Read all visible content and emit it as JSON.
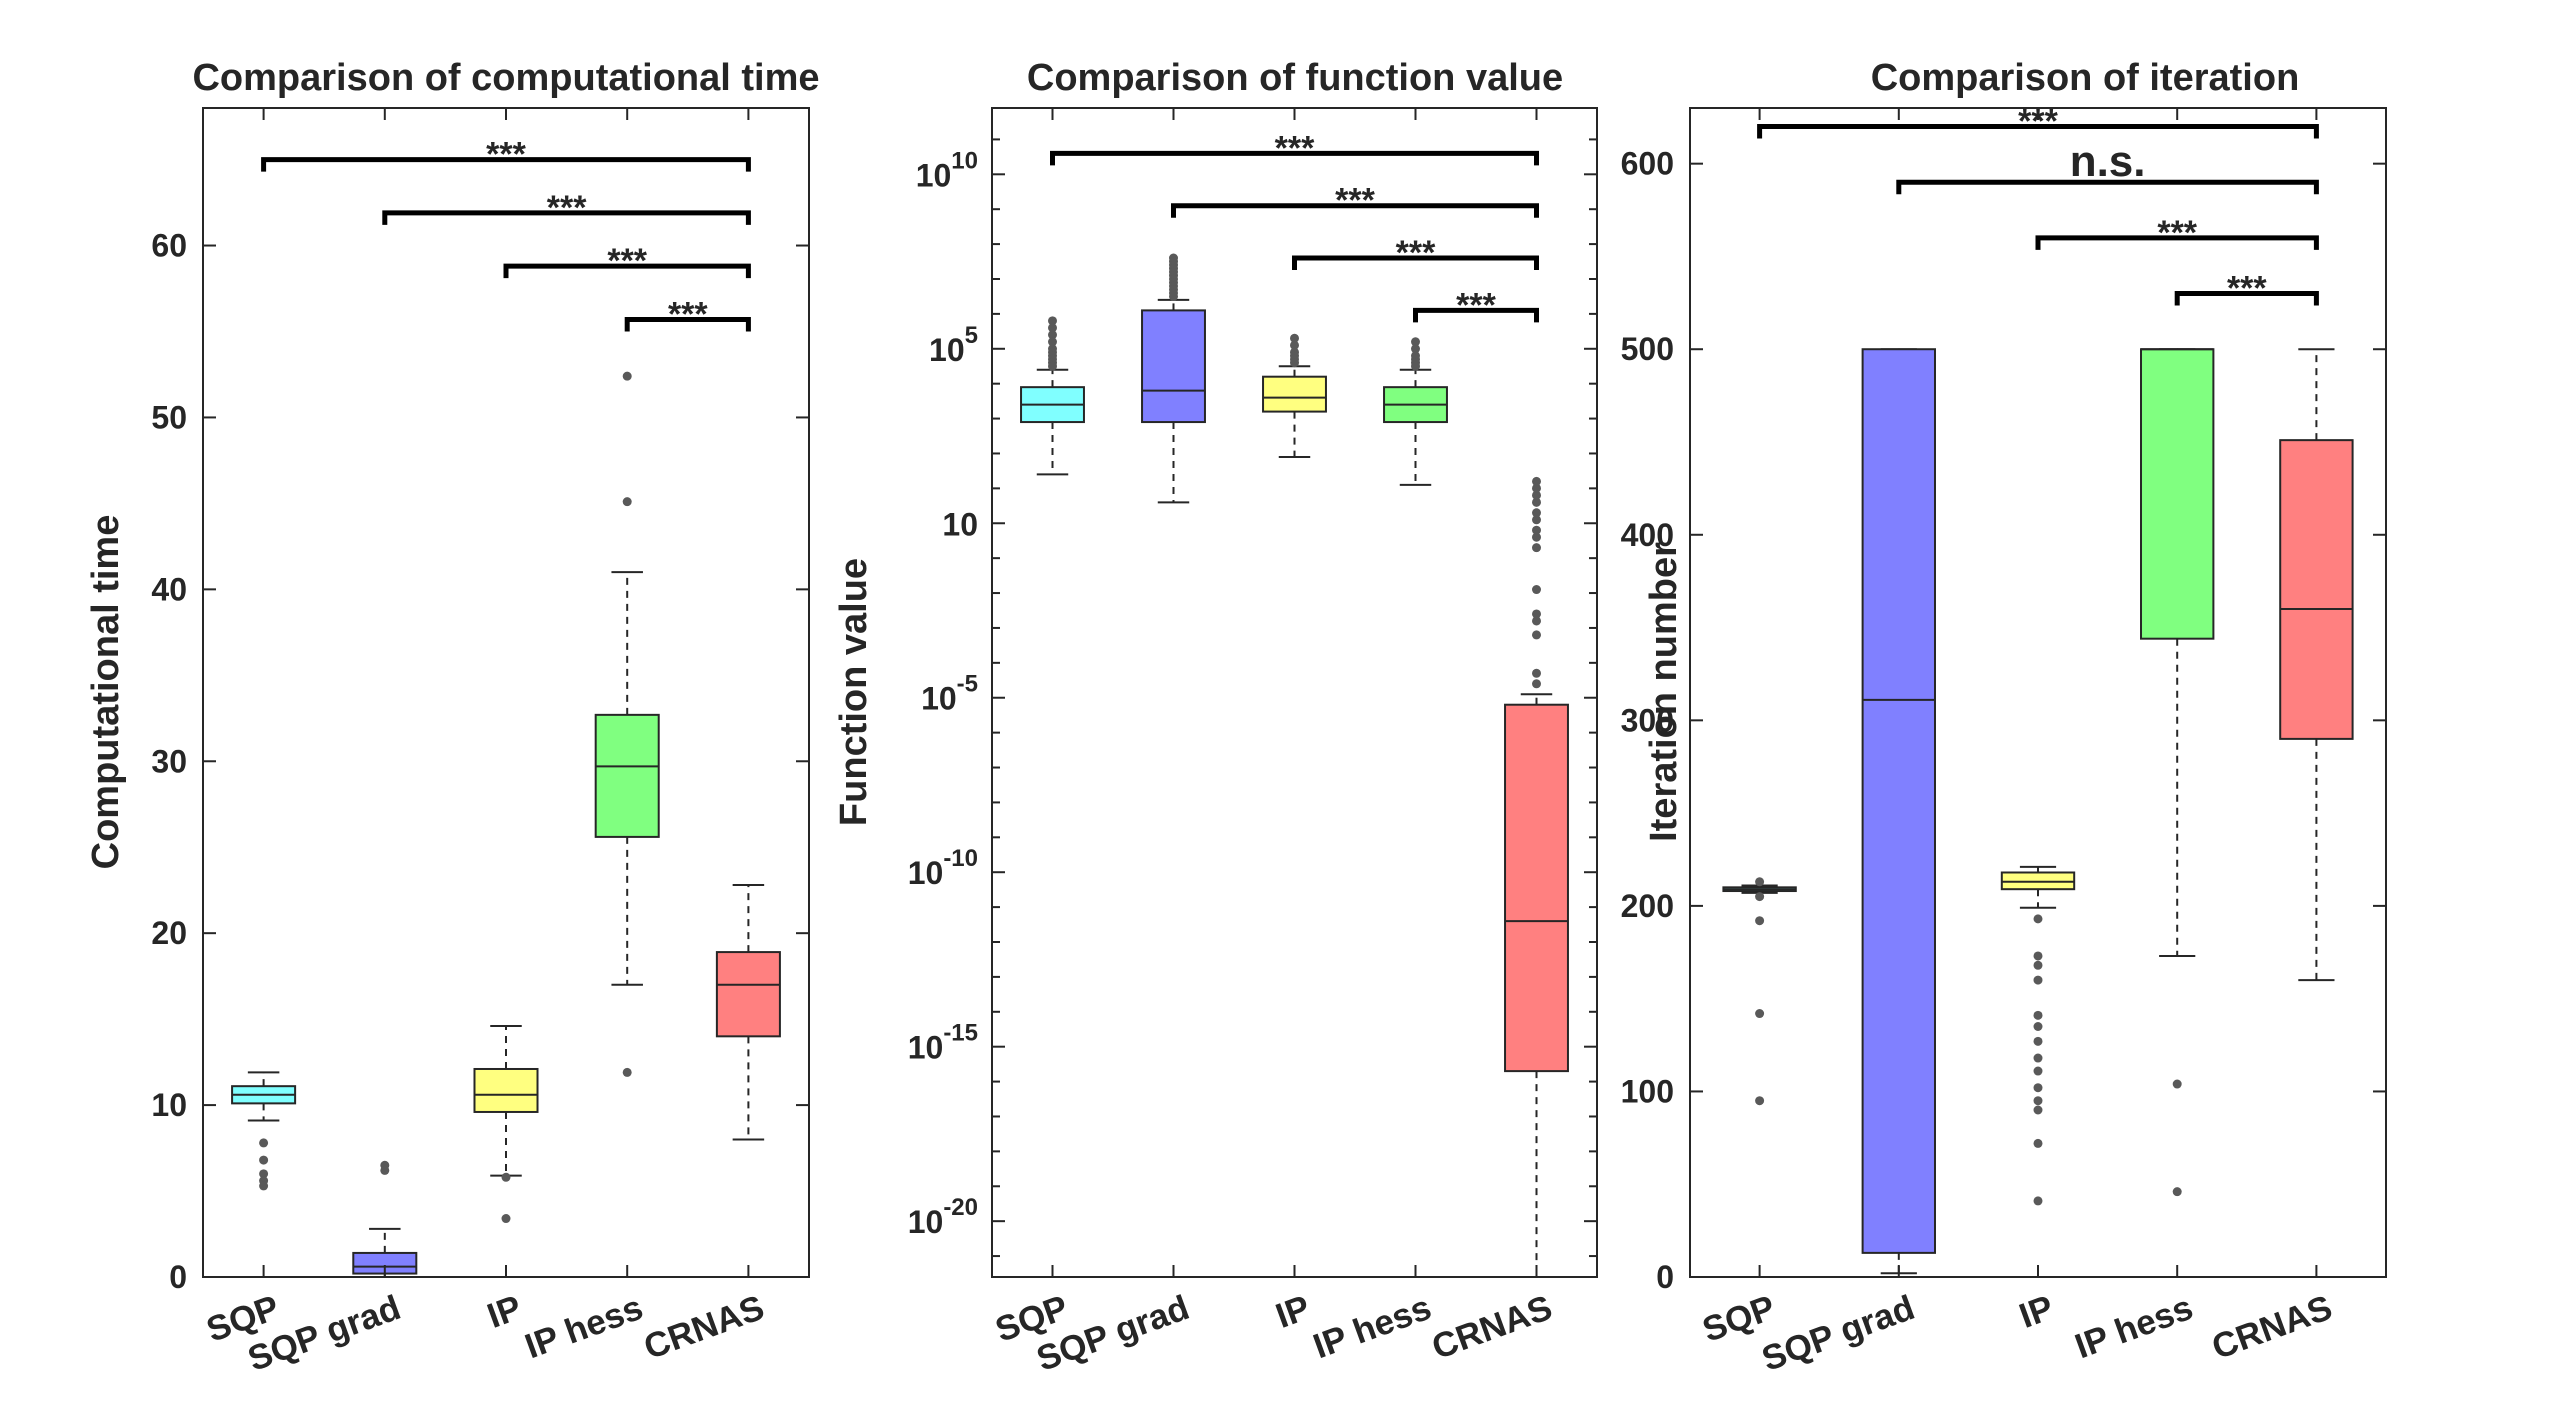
{
  "chart_data": [
    {
      "type": "box",
      "title": "Comparison of computational time",
      "ylabel": "Computational time",
      "yscale": "linear",
      "ylim": [
        0,
        68
      ],
      "yticks": [
        0,
        10,
        20,
        30,
        40,
        50,
        60
      ],
      "categories": [
        "SQP",
        "SQP grad",
        "IP",
        "IP hess",
        "CRNAS"
      ],
      "boxes": [
        {
          "q1": 10.1,
          "median": 10.6,
          "q3": 11.1,
          "whisker_low": 9.1,
          "whisker_high": 11.9,
          "outliers": [
            7.8,
            6.8,
            6.0,
            5.6,
            5.3
          ]
        },
        {
          "q1": 0.2,
          "median": 0.6,
          "q3": 1.4,
          "whisker_low": 0.0,
          "whisker_high": 2.8,
          "outliers": [
            6.5,
            6.2
          ]
        },
        {
          "q1": 9.6,
          "median": 10.6,
          "q3": 12.1,
          "whisker_low": 5.9,
          "whisker_high": 14.6,
          "outliers": [
            5.8,
            3.4
          ]
        },
        {
          "q1": 25.6,
          "median": 29.7,
          "q3": 32.7,
          "whisker_low": 17.0,
          "whisker_high": 41.0,
          "outliers": [
            52.4,
            45.1,
            11.9
          ]
        },
        {
          "q1": 14.0,
          "median": 17.0,
          "q3": 18.9,
          "whisker_low": 8.0,
          "whisker_high": 22.8,
          "outliers": []
        }
      ],
      "significance": [
        {
          "from": 0,
          "to": 4,
          "label": "***",
          "y": 65.0
        },
        {
          "from": 1,
          "to": 4,
          "label": "***",
          "y": 61.9
        },
        {
          "from": 2,
          "to": 4,
          "label": "***",
          "y": 58.8
        },
        {
          "from": 3,
          "to": 4,
          "label": "***",
          "y": 55.7
        }
      ]
    },
    {
      "type": "box",
      "title": "Comparison of function value",
      "ylabel": "Function value",
      "yscale": "log",
      "ylim": [
        -21.6,
        11.9
      ],
      "yticks": [
        -20,
        -15,
        -10,
        -5,
        0,
        5,
        10
      ],
      "ytick_labels": [
        {
          "base": "10",
          "exp": "-20"
        },
        {
          "base": "10",
          "exp": "-15"
        },
        {
          "base": "10",
          "exp": "-10"
        },
        {
          "base": "10",
          "exp": "-5"
        },
        {
          "base": "10",
          "exp": ""
        },
        {
          "base": "10",
          "exp": "5"
        },
        {
          "base": "10",
          "exp": "10"
        }
      ],
      "ytick_zero_label": "10",
      "categories": [
        "SQP",
        "SQP grad",
        "IP",
        "IP hess",
        "CRNAS"
      ],
      "boxes": [
        {
          "q1": 2.9,
          "median": 3.4,
          "q3": 3.9,
          "whisker_low": 1.4,
          "whisker_high": 4.4,
          "outliers": [
            5.8,
            5.6,
            5.4,
            5.2,
            5.0,
            4.9,
            4.8,
            4.7,
            4.6,
            4.5
          ]
        },
        {
          "q1": 2.9,
          "median": 3.8,
          "q3": 6.1,
          "whisker_low": 0.6,
          "whisker_high": 6.4,
          "outliers": [
            7.6,
            7.5,
            7.4,
            7.3,
            7.2,
            7.1,
            7.0,
            6.9,
            6.8,
            6.7,
            6.6,
            6.5
          ]
        },
        {
          "q1": 3.2,
          "median": 3.6,
          "q3": 4.2,
          "whisker_low": 1.9,
          "whisker_high": 4.5,
          "outliers": [
            5.3,
            5.1,
            4.9,
            4.8,
            4.7,
            4.6
          ]
        },
        {
          "q1": 2.9,
          "median": 3.4,
          "q3": 3.9,
          "whisker_low": 1.1,
          "whisker_high": 4.4,
          "outliers": [
            5.2,
            5.0,
            4.8,
            4.7,
            4.6,
            4.5
          ]
        },
        {
          "q1": -15.7,
          "median": -11.4,
          "q3": -5.2,
          "whisker_low": -21.6,
          "whisker_high": -4.9,
          "outliers": [
            -4.6,
            -4.3,
            -3.2,
            -2.8,
            -2.6,
            -1.9,
            -0.7,
            -0.4,
            -0.2,
            0.1,
            0.3,
            0.6,
            0.8,
            1.0,
            1.2
          ]
        }
      ],
      "significance": [
        {
          "from": 0,
          "to": 4,
          "label": "***",
          "y": 10.6
        },
        {
          "from": 1,
          "to": 4,
          "label": "***",
          "y": 9.1
        },
        {
          "from": 2,
          "to": 4,
          "label": "***",
          "y": 7.6
        },
        {
          "from": 3,
          "to": 4,
          "label": "***",
          "y": 6.1
        }
      ]
    },
    {
      "type": "box",
      "title": "Comparison of iteration",
      "ylabel": "Iteration number",
      "yscale": "linear",
      "ylim": [
        0,
        630
      ],
      "yticks": [
        0,
        100,
        200,
        300,
        400,
        500,
        600
      ],
      "categories": [
        "SQP",
        "SQP grad",
        "IP",
        "IP hess",
        "CRNAS"
      ],
      "boxes": [
        {
          "q1": 208,
          "median": 209,
          "q3": 210,
          "whisker_low": 207,
          "whisker_high": 211,
          "outliers": [
            213,
            205,
            192,
            142,
            95
          ]
        },
        {
          "q1": 13,
          "median": 311,
          "q3": 500,
          "whisker_low": 2,
          "whisker_high": 500,
          "outliers": []
        },
        {
          "q1": 209,
          "median": 213,
          "q3": 218,
          "whisker_low": 199,
          "whisker_high": 221,
          "outliers": [
            193,
            173,
            168,
            160,
            141,
            135,
            127,
            118,
            111,
            102,
            95,
            90,
            72,
            41
          ]
        },
        {
          "q1": 344,
          "median": 500,
          "q3": 500,
          "whisker_low": 173,
          "whisker_high": 500,
          "outliers": [
            104,
            46
          ]
        },
        {
          "q1": 290,
          "median": 360,
          "q3": 451,
          "whisker_low": 160,
          "whisker_high": 500,
          "outliers": []
        }
      ],
      "significance": [
        {
          "from": 0,
          "to": 4,
          "label": "***",
          "y": 620
        },
        {
          "from": 1,
          "to": 4,
          "label": "n.s.",
          "y": 590
        },
        {
          "from": 2,
          "to": 4,
          "label": "***",
          "y": 560
        },
        {
          "from": 3,
          "to": 4,
          "label": "***",
          "y": 530
        }
      ]
    }
  ],
  "colors": {
    "box_fills": [
      "#80ffff",
      "#8080ff",
      "#ffff80",
      "#80ff80",
      "#ff8080"
    ],
    "axis": "#262626",
    "outlier": "#595959",
    "background": "#ffffff"
  }
}
